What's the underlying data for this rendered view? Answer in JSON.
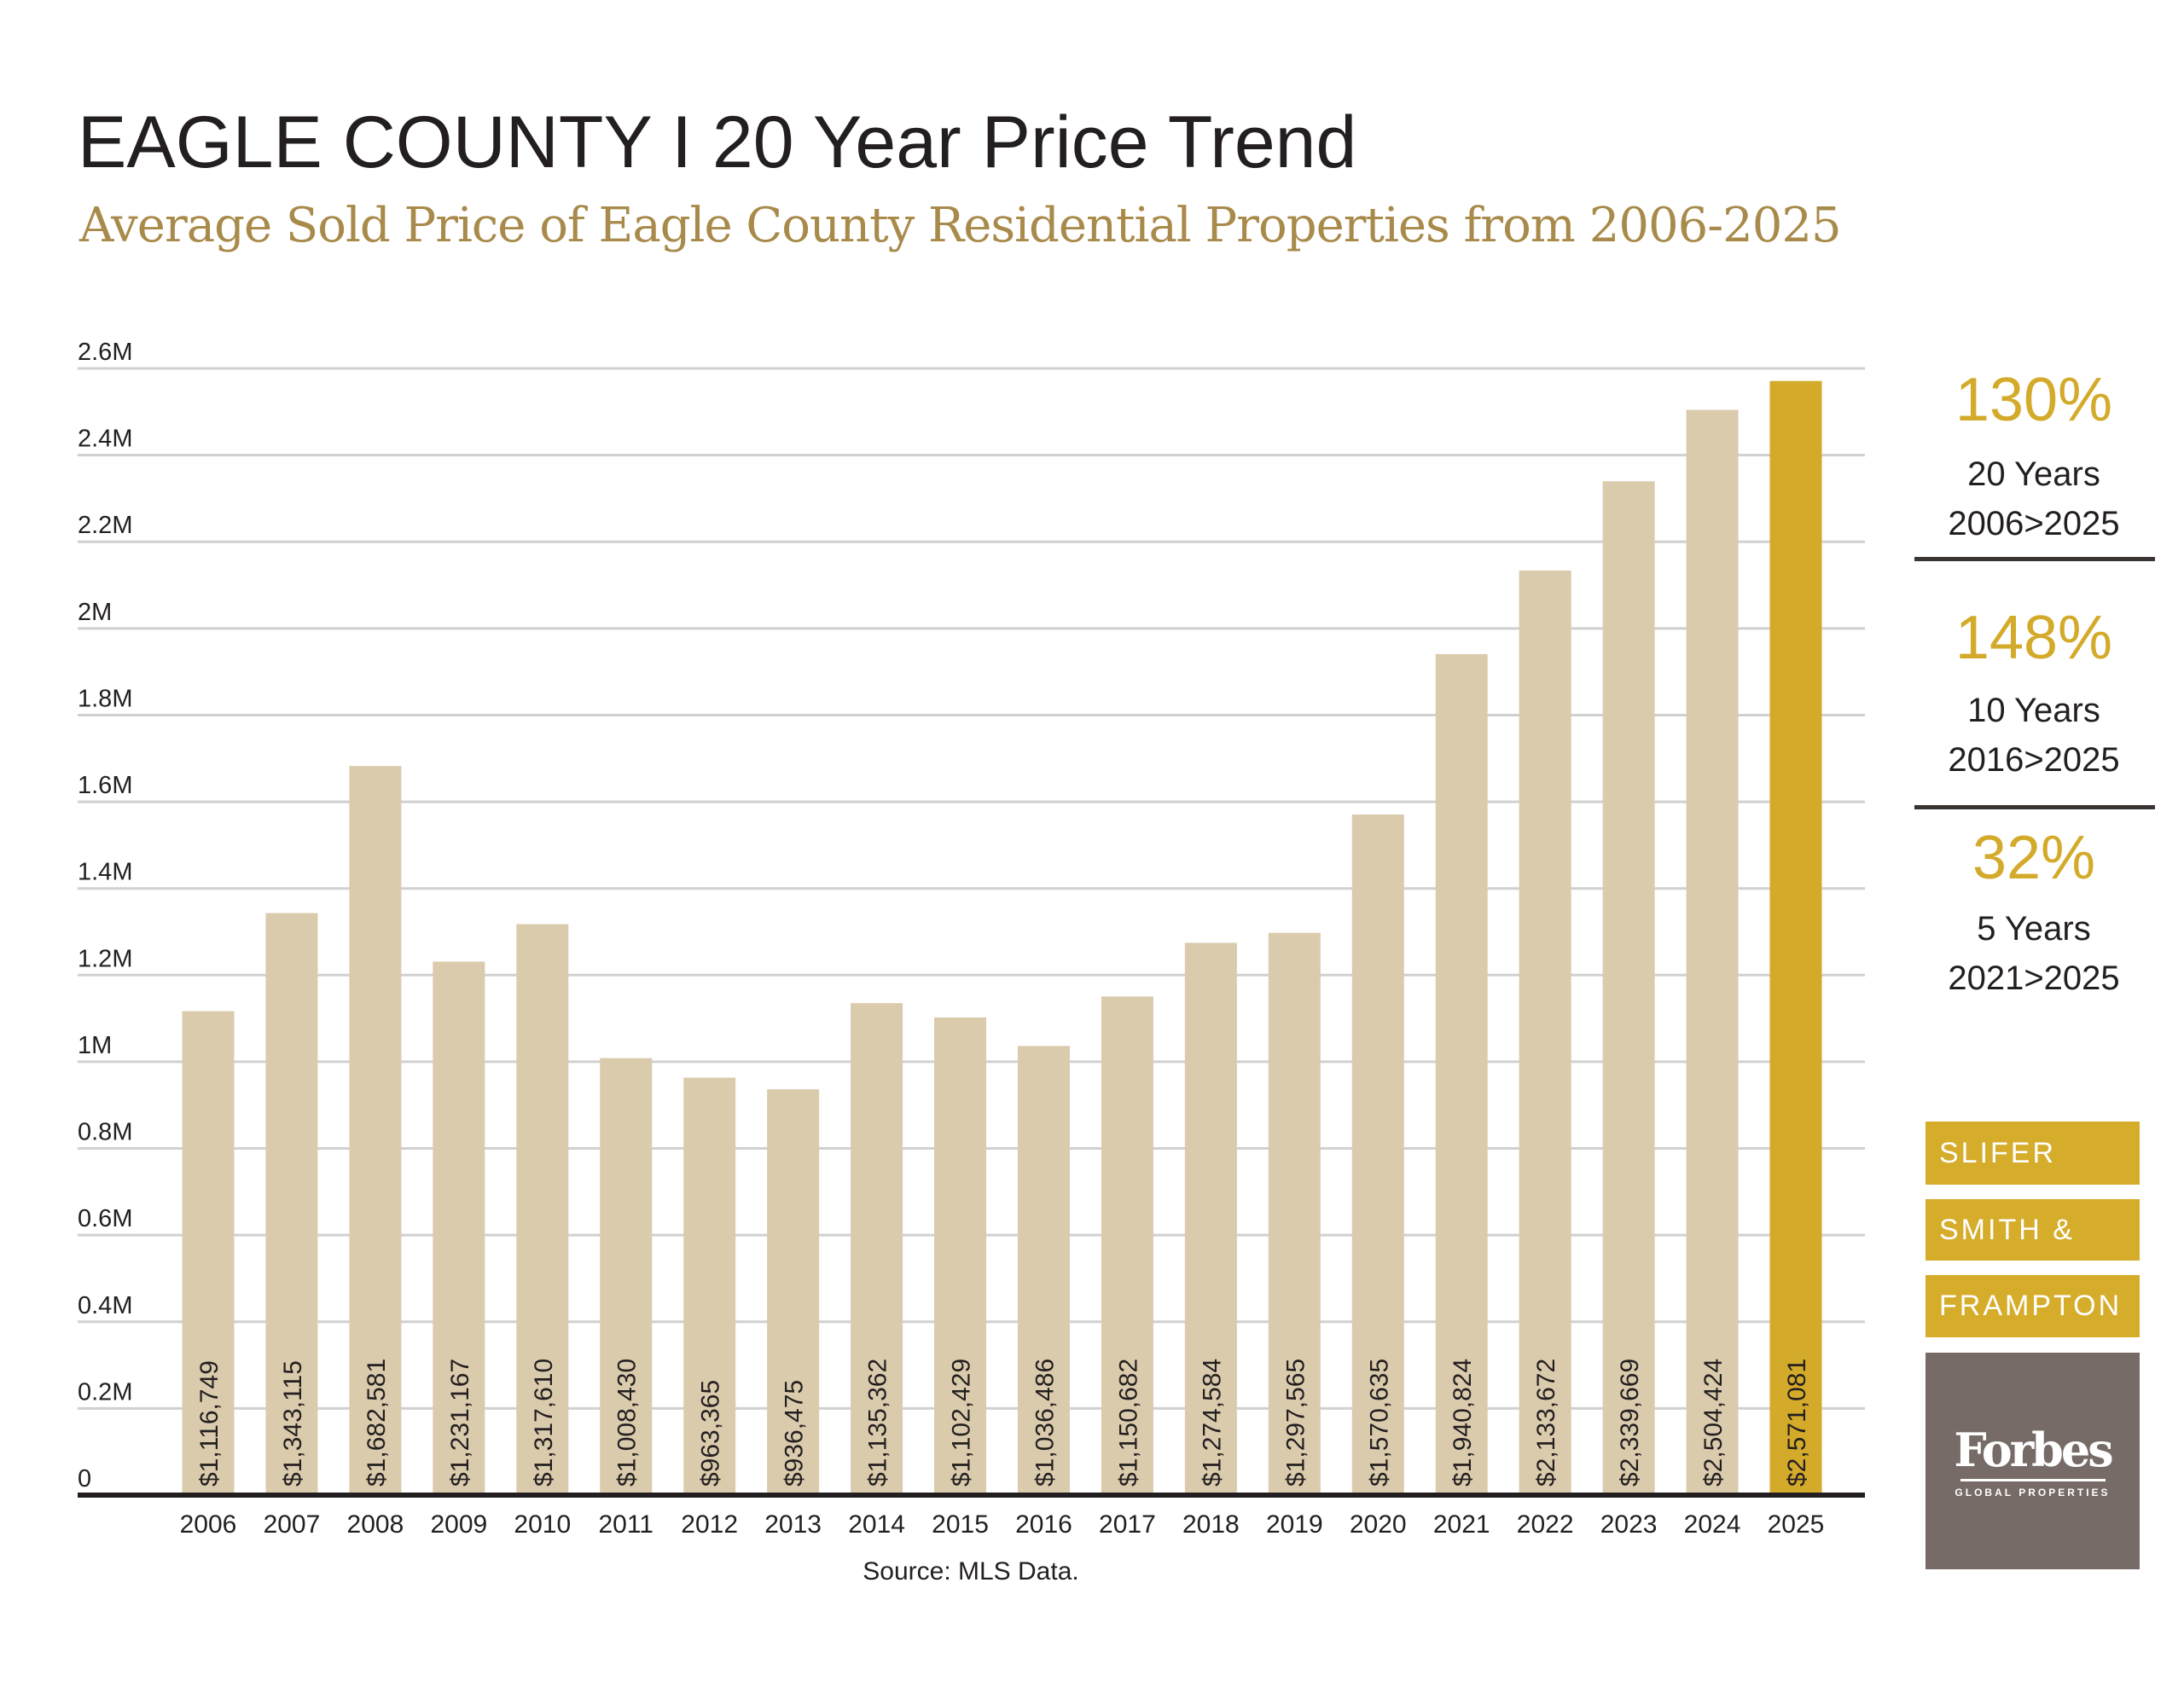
{
  "title": "EAGLE COUNTY I 20 Year Price Trend",
  "subtitle": "Average Sold Price of Eagle County Residential Properties from 2006-2025",
  "chart_data": {
    "type": "bar",
    "title": "EAGLE COUNTY I 20 Year Price Trend",
    "subtitle": "Average Sold Price of Eagle County Residential Properties from 2006-2025",
    "xlabel": "",
    "ylabel": "",
    "ylim": [
      0,
      2600000
    ],
    "yticks": [
      0,
      200000,
      400000,
      600000,
      800000,
      1000000,
      1200000,
      1400000,
      1600000,
      1800000,
      2000000,
      2200000,
      2400000,
      2600000
    ],
    "ytick_labels": [
      "0",
      "0.2M",
      "0.4M",
      "0.6M",
      "0.8M",
      "1M",
      "1.2M",
      "1.4M",
      "1.6M",
      "1.8M",
      "2M",
      "2.2M",
      "2.4M",
      "2.6M"
    ],
    "grid": true,
    "categories": [
      "2006",
      "2007",
      "2008",
      "2009",
      "2010",
      "2011",
      "2012",
      "2013",
      "2014",
      "2015",
      "2016",
      "2017",
      "2018",
      "2019",
      "2020",
      "2021",
      "2022",
      "2023",
      "2024",
      "2025"
    ],
    "values": [
      1116749,
      1343115,
      1682581,
      1231167,
      1317610,
      1008430,
      963365,
      936475,
      1135362,
      1102429,
      1036486,
      1150682,
      1274584,
      1297565,
      1570635,
      1940824,
      2133672,
      2339669,
      2504424,
      2571081
    ],
    "data_labels": [
      "$1,116,749",
      "$1,343,115",
      "$1,682,581",
      "$1,231,167",
      "$1,317,610",
      "$1,008,430",
      "$963,365",
      "$936,475",
      "$1,135,362",
      "$1,102,429",
      "$1,036,486",
      "$1,150,682",
      "$1,274,584",
      "$1,297,565",
      "$1,570,635",
      "$1,940,824",
      "$2,133,672",
      "$2,339,669",
      "$2,504,424",
      "$2,571,081"
    ],
    "highlight_category": "2025",
    "source": "Source: MLS Data.",
    "colors": {
      "bar": "#dbcbad",
      "highlight": "#d4aa2a",
      "grid": "#d0d0d0",
      "axis": "#231f20"
    }
  },
  "stats": [
    {
      "pct": "130%",
      "period": "20 Years",
      "range": "2006>2025"
    },
    {
      "pct": "148%",
      "period": "10 Years",
      "range": "2016>2025"
    },
    {
      "pct": "32%",
      "period": "5 Years",
      "range": "2021>2025"
    }
  ],
  "logo": {
    "lines": [
      "SLIFER",
      "SMITH &",
      "FRAMPTON"
    ],
    "forbes": "Forbes",
    "forbes_sub": "GLOBAL PROPERTIES"
  }
}
